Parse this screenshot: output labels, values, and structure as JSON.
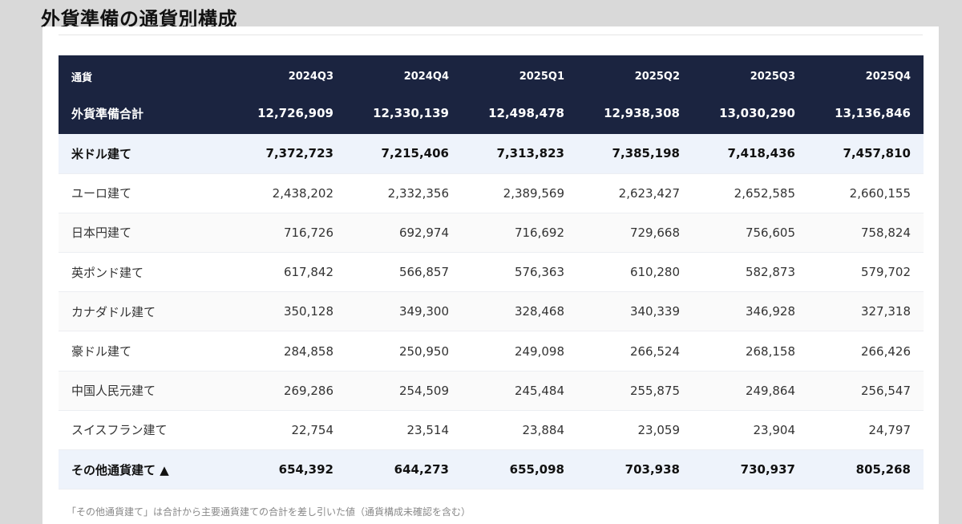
{
  "page": {
    "title": "外貨準備の通貨別構成",
    "note": "「その他通貨建て」は合計から主要通貨建ての合計を差し引いた値（通貨構成未確認を含む）"
  },
  "table": {
    "columns": [
      "通貨",
      "2024Q3",
      "2024Q4",
      "2025Q1",
      "2025Q2",
      "2025Q3",
      "2025Q4"
    ],
    "total": {
      "label": "外貨準備合計",
      "values": [
        "12,726,909",
        "12,330,139",
        "12,498,478",
        "12,938,308",
        "13,030,290",
        "13,136,846"
      ]
    },
    "rows": [
      {
        "label": "米ドル建て",
        "values": [
          "7,372,723",
          "7,215,406",
          "7,313,823",
          "7,385,198",
          "7,418,436",
          "7,457,810"
        ]
      },
      {
        "label": "ユーロ建て",
        "values": [
          "2,438,202",
          "2,332,356",
          "2,389,569",
          "2,623,427",
          "2,652,585",
          "2,660,155"
        ]
      },
      {
        "label": "日本円建て",
        "values": [
          "716,726",
          "692,974",
          "716,692",
          "729,668",
          "756,605",
          "758,824"
        ]
      },
      {
        "label": "英ポンド建て",
        "values": [
          "617,842",
          "566,857",
          "576,363",
          "610,280",
          "582,873",
          "579,702"
        ]
      },
      {
        "label": "カナダドル建て",
        "values": [
          "350,128",
          "349,300",
          "328,468",
          "340,339",
          "346,928",
          "327,318"
        ]
      },
      {
        "label": "豪ドル建て",
        "values": [
          "284,858",
          "250,950",
          "249,098",
          "266,524",
          "268,158",
          "266,426"
        ]
      },
      {
        "label": "中国人民元建て",
        "values": [
          "269,286",
          "254,509",
          "245,484",
          "255,875",
          "249,864",
          "256,547"
        ]
      },
      {
        "label": "スイスフラン建て",
        "values": [
          "22,754",
          "23,514",
          "23,884",
          "23,059",
          "23,904",
          "24,797"
        ]
      },
      {
        "label": "その他通貨建て ▲",
        "values": [
          "654,392",
          "644,273",
          "655,098",
          "703,938",
          "730,937",
          "805,268"
        ]
      }
    ]
  },
  "colors": {
    "header_bg": "#1b2440",
    "highlight_row_bg": "#eef3fb",
    "page_bg": "#d9d9d9"
  }
}
